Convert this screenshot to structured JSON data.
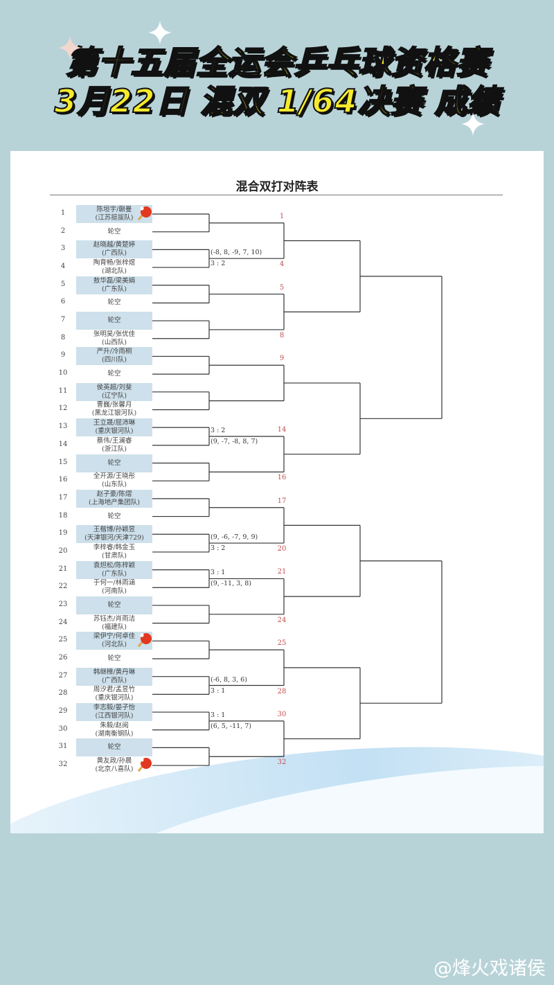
{
  "banner": {
    "line1": "第十五届全运会乒乓球资格赛",
    "line2": "3月22日 混双 1/64决赛 成绩",
    "text_color": "#f6ea2c"
  },
  "document": {
    "title": "混合双打对阵表"
  },
  "watermark": "@烽火戏诸侯",
  "colors": {
    "background": "#b8d3d8",
    "shaded_row": "#cde0eb",
    "winner_number": "#c0504d"
  },
  "entries": [
    {
      "no": "1",
      "name": "陈垣宇/蒯曼",
      "team": "(江苏挺拔队)",
      "icon": "ping-pong-paddle"
    },
    {
      "no": "2",
      "name": "轮空",
      "team": ""
    },
    {
      "no": "3",
      "name": "赵晓越/黄楚婷",
      "team": "(广西队)"
    },
    {
      "no": "4",
      "name": "陶育畅/张梓煜",
      "team": "(湖北队)"
    },
    {
      "no": "5",
      "name": "敖华磊/梁美娟",
      "team": "(广东队)"
    },
    {
      "no": "6",
      "name": "轮空",
      "team": ""
    },
    {
      "no": "7",
      "name": "轮空",
      "team": ""
    },
    {
      "no": "8",
      "name": "张明昊/张优佳",
      "team": "(山西队)"
    },
    {
      "no": "9",
      "name": "严升/冷雨桐",
      "team": "(四川队)"
    },
    {
      "no": "10",
      "name": "轮空",
      "team": ""
    },
    {
      "no": "11",
      "name": "侯英超/刘斐",
      "team": "(辽宁队)"
    },
    {
      "no": "12",
      "name": "曹巍/张馨月",
      "team": "(黑龙江银河队)"
    },
    {
      "no": "13",
      "name": "王立晟/屈沛琳",
      "team": "(重庆银河队)"
    },
    {
      "no": "14",
      "name": "蔡伟/王澜睿",
      "team": "(浙江队)"
    },
    {
      "no": "15",
      "name": "轮空",
      "team": ""
    },
    {
      "no": "16",
      "name": "全开源/王晓彤",
      "team": "(山东队)"
    },
    {
      "no": "17",
      "name": "赵子豪/陈熠",
      "team": "(上海地产集团队)"
    },
    {
      "no": "18",
      "name": "轮空",
      "team": ""
    },
    {
      "no": "19",
      "name": "王楷博/孙颖昱",
      "team": "(天津银河/天津729)"
    },
    {
      "no": "20",
      "name": "李梓睿/韩金玉",
      "team": "(甘肃队)"
    },
    {
      "no": "21",
      "name": "袁炟松/陈梓颖",
      "team": "(广东队)"
    },
    {
      "no": "22",
      "name": "于何一/林雨涵",
      "team": "(河南队)"
    },
    {
      "no": "23",
      "name": "轮空",
      "team": ""
    },
    {
      "no": "24",
      "name": "苏钰杰/肖雨洁",
      "team": "(福建队)"
    },
    {
      "no": "25",
      "name": "梁伊宁/何卓佳",
      "team": "(河北队)",
      "icon": "ping-pong-paddle"
    },
    {
      "no": "26",
      "name": "轮空",
      "team": ""
    },
    {
      "no": "27",
      "name": "韩继樟/黄丹琳",
      "team": "(广西队)"
    },
    {
      "no": "28",
      "name": "周汐君/孟昱竹",
      "team": "(重庆银河队)"
    },
    {
      "no": "29",
      "name": "李志毅/晏子怡",
      "team": "(江西银河队)"
    },
    {
      "no": "30",
      "name": "朱毅/赵阅",
      "team": "(湖南衡钢队)"
    },
    {
      "no": "31",
      "name": "轮空",
      "team": ""
    },
    {
      "no": "32",
      "name": "黄友政/孙晨",
      "team": "(北京八喜队)",
      "icon": "ping-pong-paddle"
    }
  ],
  "round1": [
    {
      "winner": "1"
    },
    {
      "winner": "4",
      "above": "(-8, 8, -9, 7, 10)",
      "below": "3 : 2"
    },
    {
      "winner": "5"
    },
    {
      "winner": "8"
    },
    {
      "winner": "9"
    },
    {
      "winner": ""
    },
    {
      "winner": "14",
      "above": "3 : 2",
      "below": "(9, -7, -8, 8, 7)"
    },
    {
      "winner": "16"
    },
    {
      "winner": "17"
    },
    {
      "winner": "20",
      "above": "(9, -6, -7, 9, 9)",
      "below": "3 : 2"
    },
    {
      "winner": "21",
      "above": "3 : 1",
      "below": "(9, -11, 3, 8)"
    },
    {
      "winner": "24"
    },
    {
      "winner": "25"
    },
    {
      "winner": "28",
      "above": "(-6, 8, 3, 6)",
      "below": "3 : 1"
    },
    {
      "winner": "30",
      "above": "3 : 1",
      "below": "(6, 5, -11, 7)"
    },
    {
      "winner": "32"
    }
  ]
}
